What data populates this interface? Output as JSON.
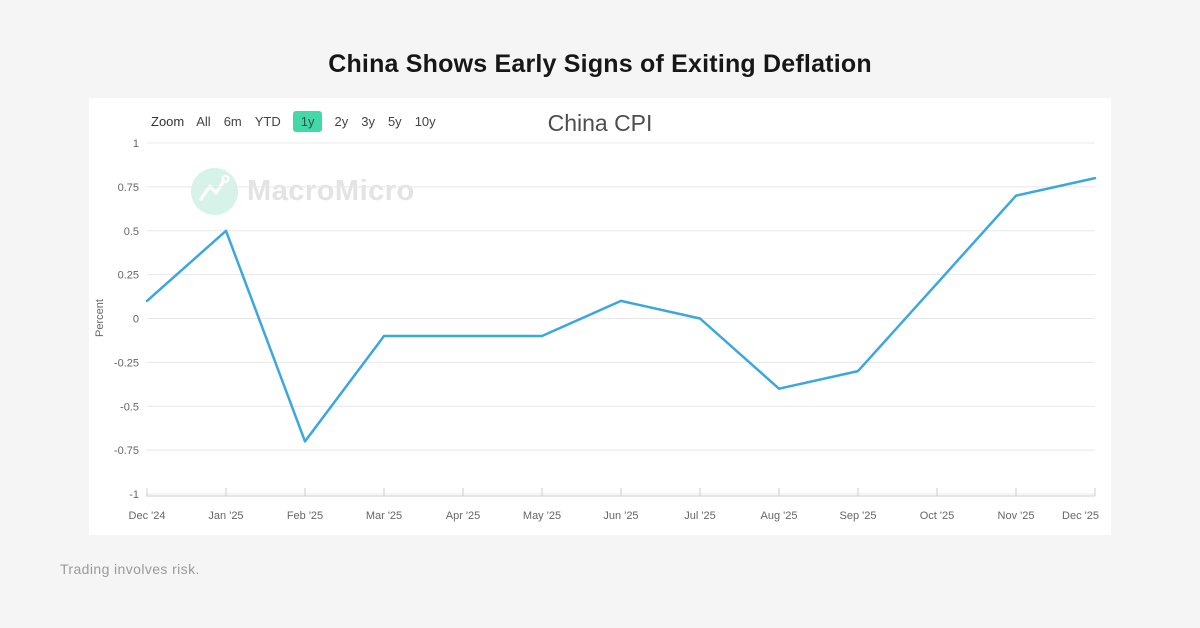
{
  "page": {
    "title": "China Shows Early Signs of Exiting Deflation"
  },
  "toolbar": {
    "zoom_label": "Zoom",
    "ranges": [
      {
        "label": "All",
        "selected": false
      },
      {
        "label": "6m",
        "selected": false
      },
      {
        "label": "YTD",
        "selected": false
      },
      {
        "label": "1y",
        "selected": true
      },
      {
        "label": "2y",
        "selected": false
      },
      {
        "label": "3y",
        "selected": false
      },
      {
        "label": "5y",
        "selected": false
      },
      {
        "label": "10y",
        "selected": false
      }
    ]
  },
  "watermark": {
    "text": "MacroMicro",
    "icon": "macromicro-logo-icon"
  },
  "chart_data": {
    "type": "line",
    "title": "China CPI",
    "xlabel": "",
    "ylabel": "Percent",
    "categories": [
      "Dec '24",
      "Jan '25",
      "Feb '25",
      "Mar '25",
      "Apr '25",
      "May '25",
      "Jun '25",
      "Jul '25",
      "Aug '25",
      "Sep '25",
      "Oct '25",
      "Nov '25",
      "Dec '25"
    ],
    "series": [
      {
        "name": "China CPI",
        "color": "#3ba7e0",
        "values": [
          0.1,
          0.5,
          -0.7,
          -0.1,
          -0.1,
          -0.1,
          0.1,
          0.0,
          -0.4,
          -0.3,
          0.2,
          0.7,
          0.8
        ]
      }
    ],
    "ylim": [
      -1,
      1
    ],
    "yticks": [
      1,
      0.75,
      0.5,
      0.25,
      0,
      -0.25,
      -0.5,
      -0.75,
      -1
    ],
    "grid": true,
    "legend": false
  },
  "footer": {
    "disclaimer": "Trading involves risk."
  },
  "colors": {
    "background": "#f5f5f5",
    "panel": "#ffffff",
    "title_text": "#171717",
    "chart_title_text": "#4d4d4d",
    "series_line": "#3ba7e0",
    "grid_line": "#e8e8e8",
    "axis_line": "#cccccc",
    "axis_text": "#666666",
    "selected_range_bg": "#42d8a8",
    "selected_range_text": "#2d564a",
    "watermark_text": "#e3e3e3",
    "watermark_circle": "#d5f3e9",
    "footer_text": "#9a9a9a"
  }
}
